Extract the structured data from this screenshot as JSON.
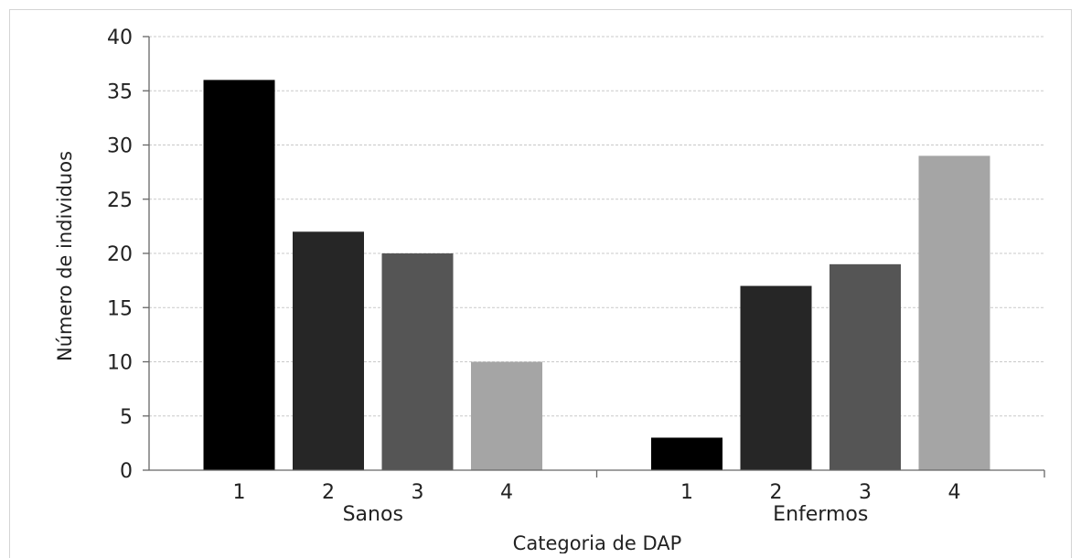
{
  "chart_data": {
    "type": "bar",
    "groups": [
      {
        "label": "Sanos",
        "categories": [
          "1",
          "2",
          "3",
          "4"
        ],
        "values": [
          36,
          22,
          20,
          10
        ]
      },
      {
        "label": "Enfermos",
        "categories": [
          "1",
          "2",
          "3",
          "4"
        ],
        "values": [
          3,
          17,
          19,
          29
        ]
      }
    ],
    "category_colors": [
      "#000000",
      "#262626",
      "#555555",
      "#a5a5a5"
    ],
    "xlabel": "Categoria de DAP",
    "ylabel": "Número de individuos",
    "ylim": [
      0,
      40
    ],
    "yticks": [
      0,
      5,
      10,
      15,
      20,
      25,
      30,
      35,
      40
    ],
    "grid": true,
    "legend": "none"
  }
}
